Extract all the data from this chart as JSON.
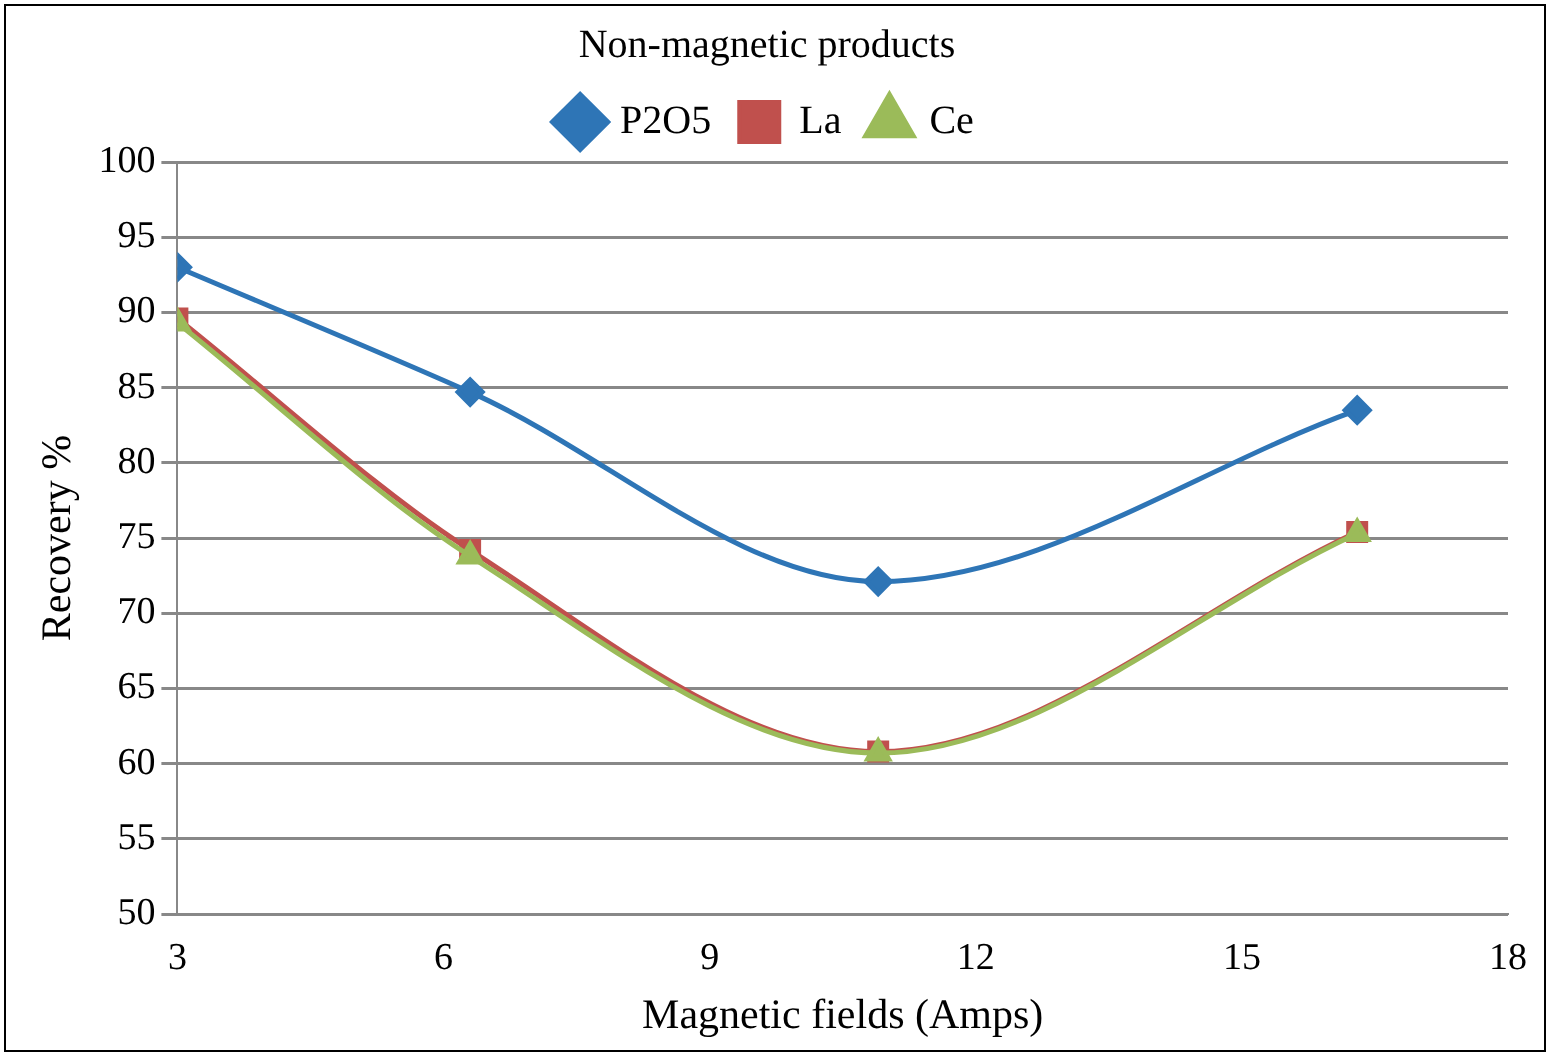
{
  "chart_data": {
    "type": "line",
    "legend_title": "Non-magnetic products",
    "xlabel": "Magnetic fields (Amps)",
    "ylabel": "Recovery %",
    "xlim": [
      3,
      18
    ],
    "xticks": [
      3,
      6,
      9,
      12,
      15,
      18
    ],
    "ylim": [
      50,
      100
    ],
    "yticks": [
      50,
      55,
      60,
      65,
      70,
      75,
      80,
      85,
      90,
      95,
      100
    ],
    "grid": "y",
    "legend": "top",
    "line_style": "solid",
    "series": [
      {
        "name": "P2O5",
        "color": "#2e75b6",
        "marker": "diamond",
        "x": [
          3,
          6.3,
          10.9,
          16.3
        ],
        "values": [
          93,
          84.7,
          72.1,
          83.5
        ]
      },
      {
        "name": "La",
        "color": "#c0504d",
        "marker": "square",
        "x": [
          3,
          6.3,
          10.9,
          16.3
        ],
        "values": [
          89.6,
          74.2,
          60.8,
          75.4
        ]
      },
      {
        "name": "Ce",
        "color": "#9bbb59",
        "marker": "triangle",
        "x": [
          3,
          6.3,
          10.9,
          16.3
        ],
        "values": [
          89.3,
          73.8,
          60.7,
          75.3
        ]
      }
    ]
  }
}
